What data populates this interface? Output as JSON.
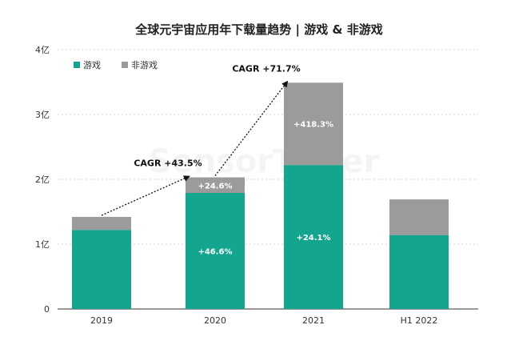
{
  "colors": {
    "game": "#13a58e",
    "nongame": "#9b9b9b",
    "grid": "#d6d6d6",
    "axis": "#333333",
    "arrow": "#111111"
  },
  "chart_data": {
    "type": "bar",
    "stacked": true,
    "title": "全球元宇宙应用年下载量趋势 | 游戏 & 非游戏",
    "xlabel": "",
    "ylabel": "",
    "ylim": [
      0,
      4
    ],
    "y_ticks": [
      {
        "value": 0,
        "label": "0"
      },
      {
        "value": 1,
        "label": "1亿"
      },
      {
        "value": 2,
        "label": "2亿"
      },
      {
        "value": 3,
        "label": "3亿"
      },
      {
        "value": 4,
        "label": "4亿"
      }
    ],
    "grid": true,
    "legend_position": "top-left",
    "categories": [
      "2019",
      "2020",
      "2021",
      "H1 2022"
    ],
    "series": [
      {
        "name": "游戏",
        "color_key": "game",
        "values": [
          1.22,
          1.79,
          2.22,
          1.14
        ],
        "labels": [
          "",
          "+46.6%",
          "+24.1%",
          ""
        ]
      },
      {
        "name": "非游戏",
        "color_key": "nongame",
        "values": [
          0.2,
          0.24,
          1.27,
          0.55
        ],
        "labels": [
          "",
          "+24.6%",
          "+418.3%",
          ""
        ]
      }
    ],
    "annotations": [
      {
        "text": "CAGR +43.5%",
        "from_index": 0,
        "to_index": 1
      },
      {
        "text": "CAGR +71.7%",
        "from_index": 1,
        "to_index": 2
      }
    ],
    "watermark": "SensorTower"
  }
}
